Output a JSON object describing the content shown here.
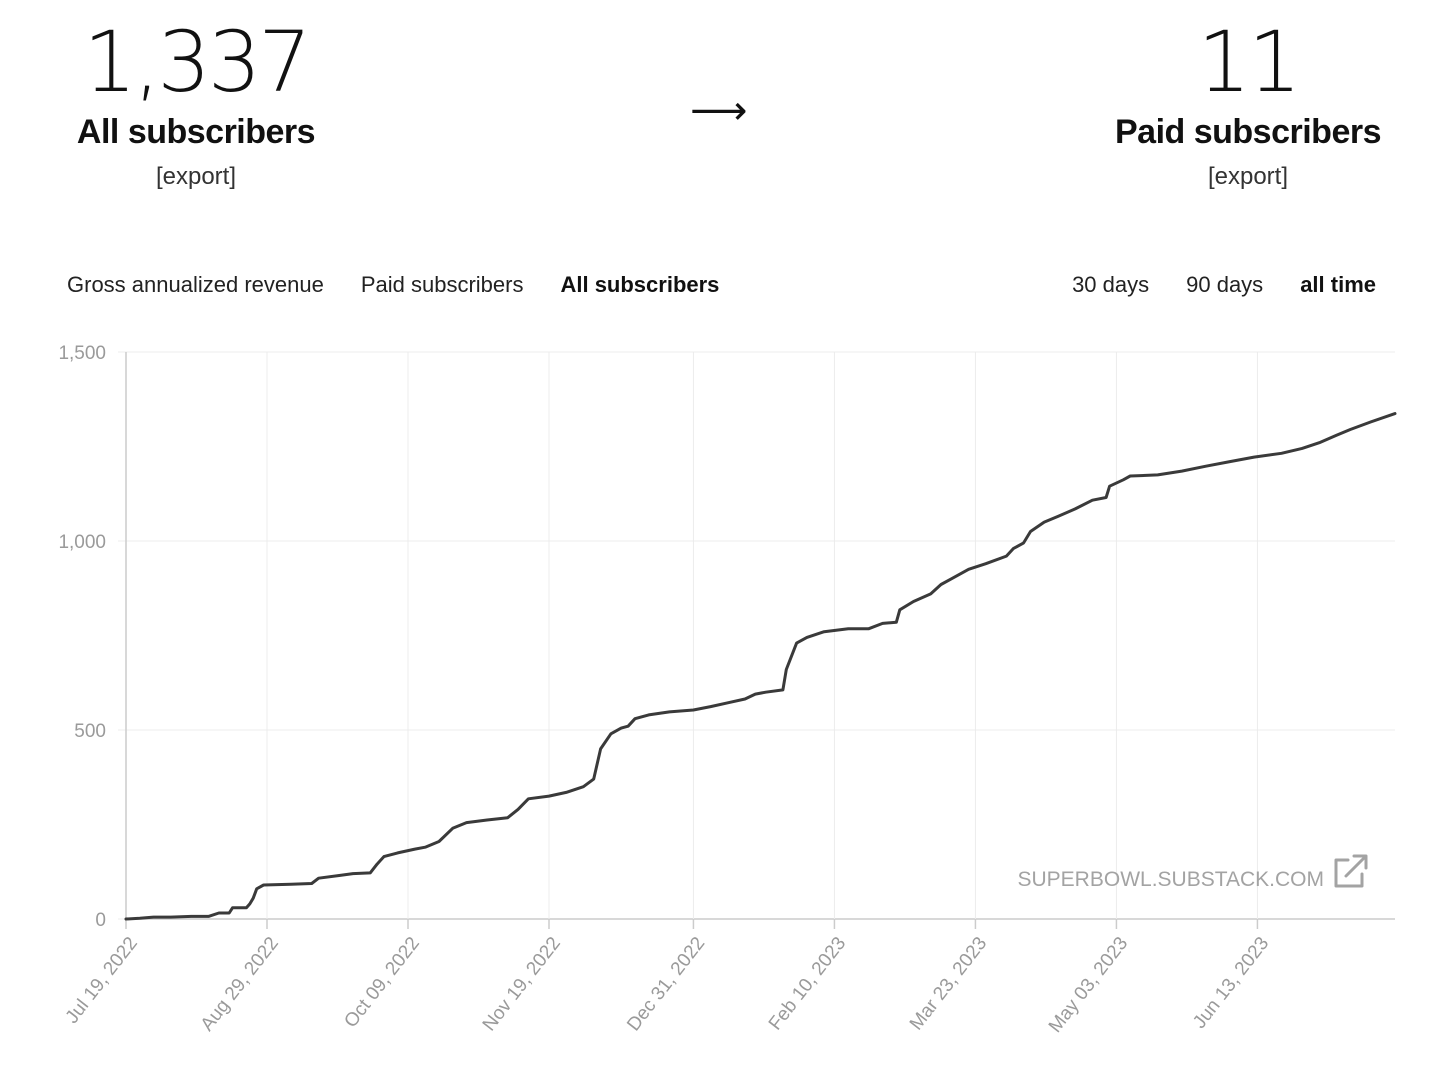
{
  "header": {
    "all": {
      "count": "1,337",
      "label": "All subscribers",
      "export": "[export]"
    },
    "arrow": "⟶",
    "paid": {
      "count": "11",
      "label": "Paid subscribers",
      "export": "[export]"
    }
  },
  "tabs": [
    {
      "label": "Gross annualized revenue",
      "active": false
    },
    {
      "label": "Paid subscribers",
      "active": false
    },
    {
      "label": "All subscribers",
      "active": true
    }
  ],
  "ranges": [
    {
      "label": "30 days",
      "active": false
    },
    {
      "label": "90 days",
      "active": false
    },
    {
      "label": "all time",
      "active": true
    }
  ],
  "watermark": "SUPERBOWL.SUBSTACK.COM",
  "watermark_icon": "external-link-icon",
  "colors": {
    "line": "#3a3a3a",
    "grid": "#ececec",
    "axis": "#cccccc",
    "tick": "#9a9a9a"
  },
  "chart_data": {
    "type": "line",
    "title": "",
    "xlabel": "",
    "ylabel": "",
    "ylim": [
      0,
      1500
    ],
    "xlim": [
      "2022-07-19",
      "2023-07-23"
    ],
    "y_ticks": [
      0,
      500,
      1000,
      1500
    ],
    "y_tick_labels": [
      "0",
      "500",
      "1,000",
      "1,500"
    ],
    "x_ticks": [
      "2022-07-19",
      "2022-08-29",
      "2022-10-09",
      "2022-11-19",
      "2022-12-31",
      "2023-02-10",
      "2023-03-23",
      "2023-05-03",
      "2023-06-13"
    ],
    "x_tick_labels": [
      "Jul 19, 2022",
      "Aug 29, 2022",
      "Oct 09, 2022",
      "Nov 19, 2022",
      "Dec 31, 2022",
      "Feb 10, 2023",
      "Mar 23, 2023",
      "May 03, 2023",
      "Jun 13, 2023"
    ],
    "grid": true,
    "series": [
      {
        "points": [
          [
            "2022-07-19",
            0
          ],
          [
            "2022-07-23",
            2
          ],
          [
            "2022-07-27",
            5
          ],
          [
            "2022-08-01",
            5
          ],
          [
            "2022-08-07",
            7
          ],
          [
            "2022-08-12",
            7
          ],
          [
            "2022-08-15",
            16
          ],
          [
            "2022-08-18",
            16
          ],
          [
            "2022-08-19",
            30
          ],
          [
            "2022-08-23",
            30
          ],
          [
            "2022-08-24",
            40
          ],
          [
            "2022-08-25",
            55
          ],
          [
            "2022-08-26",
            80
          ],
          [
            "2022-08-28",
            90
          ],
          [
            "2022-09-05",
            92
          ],
          [
            "2022-09-11",
            94
          ],
          [
            "2022-09-13",
            108
          ],
          [
            "2022-09-19",
            115
          ],
          [
            "2022-09-23",
            120
          ],
          [
            "2022-09-28",
            122
          ],
          [
            "2022-09-30",
            145
          ],
          [
            "2022-10-02",
            165
          ],
          [
            "2022-10-06",
            175
          ],
          [
            "2022-10-11",
            185
          ],
          [
            "2022-10-14",
            190
          ],
          [
            "2022-10-18",
            205
          ],
          [
            "2022-10-22",
            240
          ],
          [
            "2022-10-26",
            255
          ],
          [
            "2022-11-01",
            262
          ],
          [
            "2022-11-07",
            268
          ],
          [
            "2022-11-10",
            290
          ],
          [
            "2022-11-13",
            318
          ],
          [
            "2022-11-19",
            325
          ],
          [
            "2022-11-24",
            335
          ],
          [
            "2022-11-29",
            350
          ],
          [
            "2022-12-02",
            370
          ],
          [
            "2022-12-04",
            450
          ],
          [
            "2022-12-07",
            490
          ],
          [
            "2022-12-10",
            505
          ],
          [
            "2022-12-12",
            510
          ],
          [
            "2022-12-14",
            530
          ],
          [
            "2022-12-18",
            540
          ],
          [
            "2022-12-24",
            548
          ],
          [
            "2022-12-31",
            553
          ],
          [
            "2023-01-05",
            562
          ],
          [
            "2023-01-10",
            572
          ],
          [
            "2023-01-15",
            582
          ],
          [
            "2023-01-18",
            595
          ],
          [
            "2023-01-21",
            600
          ],
          [
            "2023-01-26",
            606
          ],
          [
            "2023-01-27",
            660
          ],
          [
            "2023-01-30",
            730
          ],
          [
            "2023-02-02",
            745
          ],
          [
            "2023-02-07",
            760
          ],
          [
            "2023-02-14",
            768
          ],
          [
            "2023-02-20",
            768
          ],
          [
            "2023-02-24",
            782
          ],
          [
            "2023-02-28",
            785
          ],
          [
            "2023-03-01",
            818
          ],
          [
            "2023-03-05",
            840
          ],
          [
            "2023-03-10",
            860
          ],
          [
            "2023-03-13",
            885
          ],
          [
            "2023-03-16",
            900
          ],
          [
            "2023-03-21",
            925
          ],
          [
            "2023-03-26",
            940
          ],
          [
            "2023-04-01",
            960
          ],
          [
            "2023-04-03",
            980
          ],
          [
            "2023-04-06",
            995
          ],
          [
            "2023-04-08",
            1025
          ],
          [
            "2023-04-12",
            1050
          ],
          [
            "2023-04-16",
            1065
          ],
          [
            "2023-04-21",
            1085
          ],
          [
            "2023-04-26",
            1108
          ],
          [
            "2023-04-30",
            1115
          ],
          [
            "2023-05-01",
            1145
          ],
          [
            "2023-05-05",
            1162
          ],
          [
            "2023-05-07",
            1172
          ],
          [
            "2023-05-15",
            1175
          ],
          [
            "2023-05-22",
            1185
          ],
          [
            "2023-05-29",
            1198
          ],
          [
            "2023-06-05",
            1210
          ],
          [
            "2023-06-12",
            1222
          ],
          [
            "2023-06-20",
            1232
          ],
          [
            "2023-06-26",
            1245
          ],
          [
            "2023-07-01",
            1260
          ],
          [
            "2023-07-06",
            1280
          ],
          [
            "2023-07-10",
            1295
          ],
          [
            "2023-07-16",
            1315
          ],
          [
            "2023-07-23",
            1337
          ]
        ]
      }
    ]
  }
}
